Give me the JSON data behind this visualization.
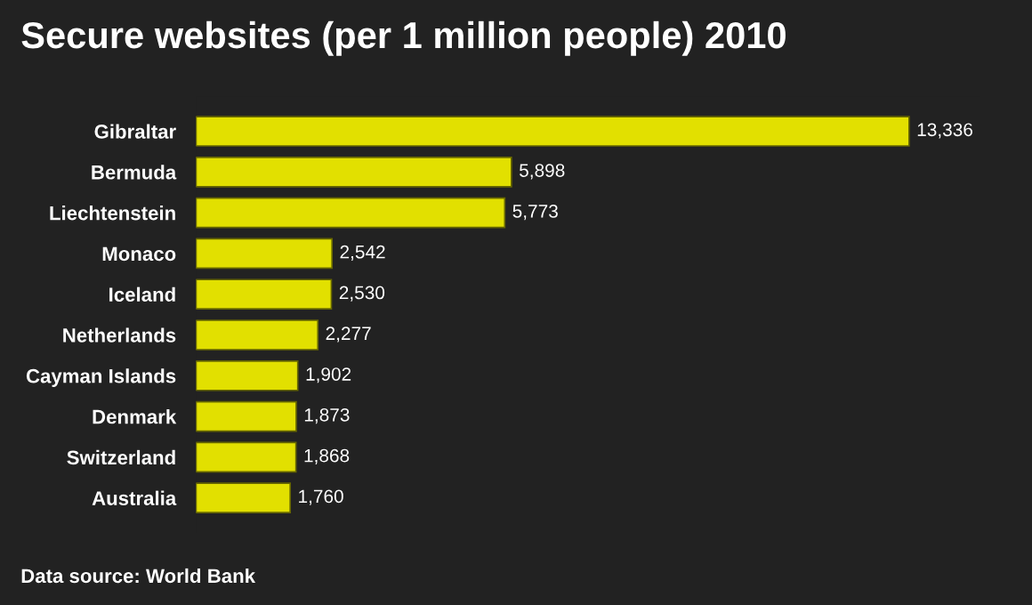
{
  "chart_data": {
    "type": "bar",
    "orientation": "horizontal",
    "title": "Secure websites (per 1 million people) 2010",
    "categories": [
      "Gibraltar",
      "Bermuda",
      "Liechtenstein",
      "Monaco",
      "Iceland",
      "Netherlands",
      "Cayman Islands",
      "Denmark",
      "Switzerland",
      "Australia"
    ],
    "values": [
      13336,
      5898,
      5773,
      2542,
      2530,
      2277,
      1902,
      1873,
      1868,
      1760
    ],
    "value_labels": [
      "13,336",
      "5,898",
      "5,773",
      "2,542",
      "2,530",
      "2,277",
      "1,902",
      "1,873",
      "1,868",
      "1,760"
    ],
    "color": "#e2e000",
    "annotations": [
      "Data source: World Bank"
    ],
    "grid": false,
    "legend": false
  }
}
